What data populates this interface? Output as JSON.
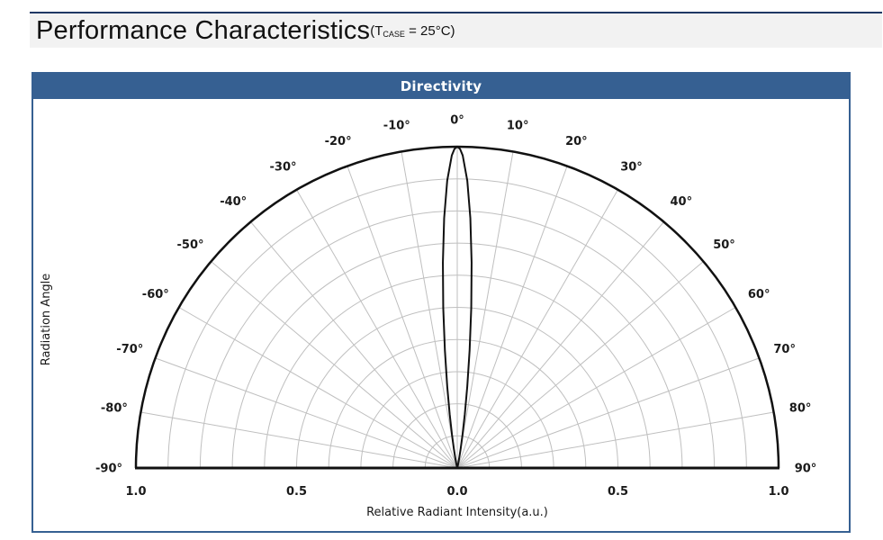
{
  "page": {
    "title": "Performance Characteristics",
    "condition_prefix": "(T",
    "condition_sub": "CASE",
    "condition_suffix": " = 25°C)"
  },
  "panel": {
    "header_label": "Directivity"
  },
  "colors": {
    "header_bg": "#366092",
    "panel_border": "#366092",
    "title_band_bg": "#f2f2f2",
    "top_rule": "#1f3864"
  },
  "chart_data": {
    "type": "line",
    "subtype": "polar-half",
    "title": "Directivity",
    "angle_axis": {
      "label": "Radiation Angle",
      "unit": "degrees",
      "range": [
        -90,
        90
      ],
      "ticks": [
        -90,
        -80,
        -70,
        -60,
        -50,
        -40,
        -30,
        -20,
        -10,
        0,
        10,
        20,
        30,
        40,
        50,
        60,
        70,
        80,
        90
      ]
    },
    "radial_axis": {
      "label": "Relative Radiant Intensity(a.u.)",
      "range": [
        0,
        1
      ],
      "grid_step": 0.1,
      "tick_labels": [
        {
          "label": "1.0",
          "pos": -1
        },
        {
          "label": "0.5",
          "pos": -0.5
        },
        {
          "label": "0.0",
          "pos": 0
        },
        {
          "label": "0.5",
          "pos": 0.5
        },
        {
          "label": "1.0",
          "pos": 1
        }
      ]
    },
    "grid": true,
    "legend": false,
    "series": [
      {
        "name": "relative-radiant-intensity-vs-angle",
        "points": [
          [
            -15,
            0.002
          ],
          [
            -14,
            0.004
          ],
          [
            -13,
            0.009
          ],
          [
            -12,
            0.018
          ],
          [
            -11,
            0.035
          ],
          [
            -10,
            0.062
          ],
          [
            -9,
            0.105
          ],
          [
            -8,
            0.169
          ],
          [
            -7,
            0.256
          ],
          [
            -6,
            0.368
          ],
          [
            -5,
            0.5
          ],
          [
            -4,
            0.641
          ],
          [
            -3,
            0.779
          ],
          [
            -2,
            0.895
          ],
          [
            -1,
            0.973
          ],
          [
            -0.5,
            0.993
          ],
          [
            0,
            1.0
          ],
          [
            0.5,
            0.993
          ],
          [
            1,
            0.973
          ],
          [
            2,
            0.895
          ],
          [
            3,
            0.779
          ],
          [
            4,
            0.641
          ],
          [
            5,
            0.5
          ],
          [
            6,
            0.368
          ],
          [
            7,
            0.256
          ],
          [
            8,
            0.169
          ],
          [
            9,
            0.105
          ],
          [
            10,
            0.062
          ],
          [
            11,
            0.035
          ],
          [
            12,
            0.018
          ],
          [
            13,
            0.009
          ],
          [
            14,
            0.004
          ],
          [
            15,
            0.002
          ]
        ]
      }
    ],
    "colors": {
      "grid": "#bfbfbf",
      "line": "#111111",
      "label": "#1a1a1a"
    }
  }
}
